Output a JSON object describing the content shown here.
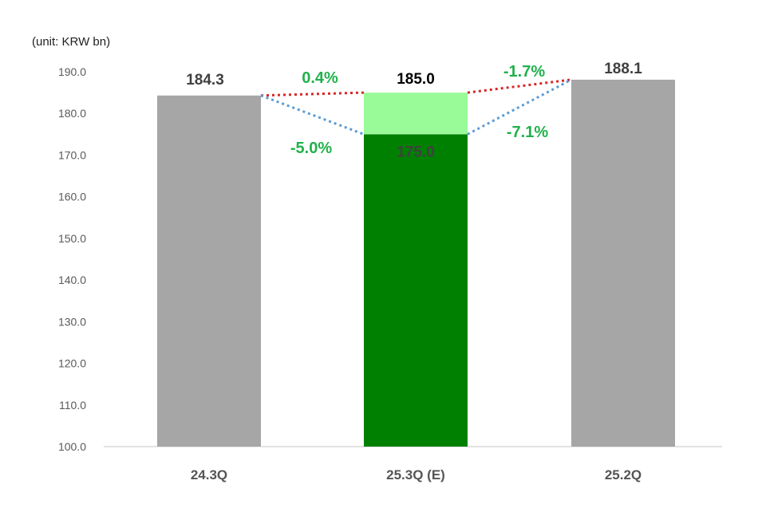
{
  "unit_label": "(unit: KRW bn)",
  "colors": {
    "gray_bar": "#a6a6a6",
    "dark_green": "#008000",
    "light_green": "#98fb98",
    "pct_green": "#22b14c",
    "red_dotted": "#d62728",
    "blue_dotted": "#5b9bd5",
    "axis": "#d9d9d9"
  },
  "chart_data": {
    "type": "bar",
    "categories": [
      "24.3Q",
      "25.3Q (E)",
      "25.2Q"
    ],
    "bars": [
      {
        "category": "24.3Q",
        "value": 184.3,
        "label": "184.3"
      },
      {
        "category": "25.3Q (E)",
        "low": 175.0,
        "high": 185.0,
        "low_label": "175.0",
        "high_label": "185.0"
      },
      {
        "category": "25.2Q",
        "value": 188.1,
        "label": "188.1"
      }
    ],
    "ylim": [
      100,
      190
    ],
    "yticks": [
      "100.0",
      "110.0",
      "120.0",
      "130.0",
      "140.0",
      "150.0",
      "160.0",
      "170.0",
      "180.0",
      "190.0"
    ],
    "change_labels": {
      "yoy_high": "0.4%",
      "yoy_low": "-5.0%",
      "qoq_high": "-1.7%",
      "qoq_low": "-7.1%"
    },
    "grid": false
  }
}
